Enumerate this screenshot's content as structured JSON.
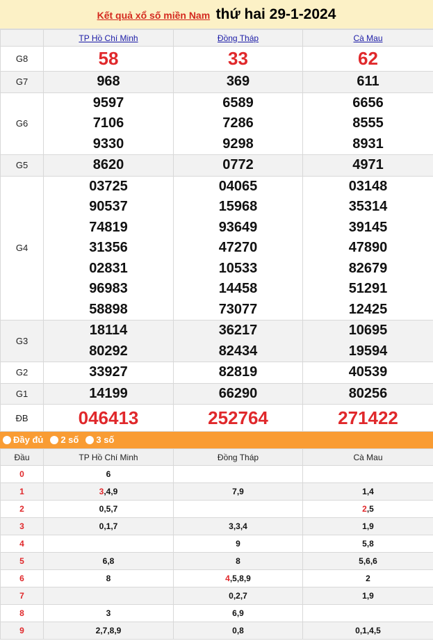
{
  "header": {
    "link": "Kết quả xổ số miền Nam",
    "date": "thứ hai 29-1-2024"
  },
  "provinces": [
    "TP Hồ Chí Minh",
    "Đồng Tháp",
    "Cà Mau"
  ],
  "prizes": [
    {
      "label": "G8",
      "values": [
        [
          "58"
        ],
        [
          "33"
        ],
        [
          "62"
        ]
      ]
    },
    {
      "label": "G7",
      "values": [
        [
          "968"
        ],
        [
          "369"
        ],
        [
          "611"
        ]
      ]
    },
    {
      "label": "G6",
      "values": [
        [
          "9597",
          "7106",
          "9330"
        ],
        [
          "6589",
          "7286",
          "9298"
        ],
        [
          "6656",
          "8555",
          "8931"
        ]
      ]
    },
    {
      "label": "G5",
      "values": [
        [
          "8620"
        ],
        [
          "0772"
        ],
        [
          "4971"
        ]
      ]
    },
    {
      "label": "G4",
      "values": [
        [
          "03725",
          "90537",
          "74819",
          "31356",
          "02831",
          "96983",
          "58898"
        ],
        [
          "04065",
          "15968",
          "93649",
          "47270",
          "10533",
          "14458",
          "73077"
        ],
        [
          "03148",
          "35314",
          "39145",
          "47890",
          "82679",
          "51291",
          "12425"
        ]
      ]
    },
    {
      "label": "G3",
      "values": [
        [
          "18114",
          "80292"
        ],
        [
          "36217",
          "82434"
        ],
        [
          "10695",
          "19594"
        ]
      ]
    },
    {
      "label": "G2",
      "values": [
        [
          "33927"
        ],
        [
          "82819"
        ],
        [
          "40539"
        ]
      ]
    },
    {
      "label": "G1",
      "values": [
        [
          "14199"
        ],
        [
          "66290"
        ],
        [
          "80256"
        ]
      ]
    },
    {
      "label": "ĐB",
      "values": [
        [
          "046413"
        ],
        [
          "252764"
        ],
        [
          "271422"
        ]
      ]
    }
  ],
  "filters": [
    "Đầy đủ",
    "2 số",
    "3 số"
  ],
  "loto": {
    "head_label": "Đầu",
    "rows": [
      {
        "d": "0",
        "cells": [
          {
            "r": "",
            "t": "6"
          },
          {
            "r": "",
            "t": ""
          },
          {
            "r": "",
            "t": ""
          }
        ]
      },
      {
        "d": "1",
        "cells": [
          {
            "r": "3",
            "t": ",4,9"
          },
          {
            "r": "",
            "t": "7,9"
          },
          {
            "r": "",
            "t": "1,4"
          }
        ]
      },
      {
        "d": "2",
        "cells": [
          {
            "r": "",
            "t": "0,5,7"
          },
          {
            "r": "",
            "t": ""
          },
          {
            "r": "2",
            "t": ",5"
          }
        ]
      },
      {
        "d": "3",
        "cells": [
          {
            "r": "",
            "t": "0,1,7"
          },
          {
            "r": "",
            "t": "3,3,4"
          },
          {
            "r": "",
            "t": "1,9"
          }
        ]
      },
      {
        "d": "4",
        "cells": [
          {
            "r": "",
            "t": ""
          },
          {
            "r": "",
            "t": "9"
          },
          {
            "r": "",
            "t": "5,8"
          }
        ]
      },
      {
        "d": "5",
        "cells": [
          {
            "r": "",
            "t": "6,8"
          },
          {
            "r": "",
            "t": "8"
          },
          {
            "r": "",
            "t": "5,6,6"
          }
        ]
      },
      {
        "d": "6",
        "cells": [
          {
            "r": "",
            "t": "8"
          },
          {
            "r": "4",
            "t": ",5,8,9"
          },
          {
            "r": "",
            "t": "2"
          }
        ]
      },
      {
        "d": "7",
        "cells": [
          {
            "r": "",
            "t": ""
          },
          {
            "r": "",
            "t": "0,2,7"
          },
          {
            "r": "",
            "t": "1,9"
          }
        ]
      },
      {
        "d": "8",
        "cells": [
          {
            "r": "",
            "t": "3"
          },
          {
            "r": "",
            "t": "6,9"
          },
          {
            "r": "",
            "t": ""
          }
        ]
      },
      {
        "d": "9",
        "cells": [
          {
            "r": "",
            "t": "2,7,8,9"
          },
          {
            "r": "",
            "t": "0,8"
          },
          {
            "r": "",
            "t": "0,1,4,5"
          }
        ]
      }
    ]
  },
  "colors": {
    "accent_red": "#e0282b",
    "orange_bar": "#f99c33",
    "title_bg": "#fcf1c6",
    "link_blue": "#1a1aa6"
  }
}
